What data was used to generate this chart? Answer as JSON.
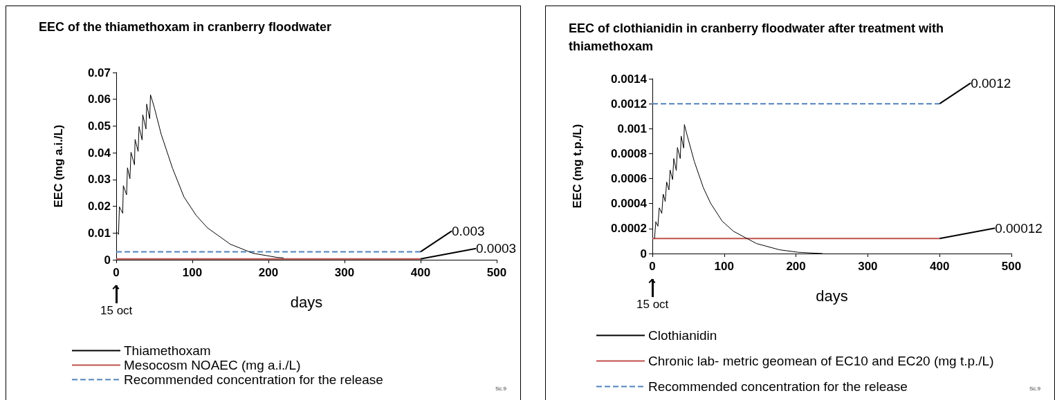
{
  "chart_data": [
    {
      "type": "line",
      "title": "EEC of the thiamethoxam in cranberry floodwater",
      "xlabel": "days",
      "ylabel": "EEC (mg a.i./L)",
      "xlim": [
        0,
        500
      ],
      "xticks": [
        0,
        100,
        200,
        300,
        400,
        500
      ],
      "ylim": [
        0,
        0.07
      ],
      "yticks": [
        0,
        0.01,
        0.02,
        0.03,
        0.04,
        0.05,
        0.06,
        0.07
      ],
      "grid": false,
      "legend": "bottom",
      "marker": "none",
      "series": [
        {
          "name": "Thiamethoxam",
          "color": "#000000",
          "x": [
            0,
            3,
            4.2,
            8.5,
            9.4,
            13.6,
            14.8,
            18,
            19.4,
            24,
            24.8,
            28.8,
            30,
            34,
            34.9,
            39.1,
            40,
            44,
            45,
            50,
            59,
            74,
            89,
            105,
            120,
            150,
            180,
            211,
            220
          ],
          "values": [
            0.0106,
            0.0095,
            0.0198,
            0.0174,
            0.0277,
            0.0243,
            0.0344,
            0.0303,
            0.0402,
            0.0355,
            0.045,
            0.0405,
            0.0498,
            0.0448,
            0.0542,
            0.0489,
            0.0582,
            0.0527,
            0.0617,
            0.057,
            0.047,
            0.0342,
            0.0235,
            0.0166,
            0.0119,
            0.0058,
            0.0024,
            0.0009,
            0.0007
          ]
        },
        {
          "name": "Mesocosm NOAEC (mg a.i./L)",
          "color": "#c0504d",
          "x": [
            0,
            400
          ],
          "values": [
            0.0003,
            0.0003
          ],
          "value_labels": [
            null,
            "0.0003"
          ]
        },
        {
          "name": "Recommended concentration for the release",
          "color": "#4f81bd",
          "line_style": "dashed",
          "x": [
            0,
            400
          ],
          "values": [
            0.003,
            0.003
          ],
          "value_labels": [
            null,
            "0.003"
          ]
        }
      ],
      "annotations": [
        "15 oct",
        "Sc.9"
      ]
    },
    {
      "type": "line",
      "title": "EEC of clothianidin in cranberry floodwater after treatment with thiamethoxam",
      "xlabel": "days",
      "ylabel": "EEC (mg t.p./L)",
      "xlim": [
        0,
        500
      ],
      "xticks": [
        0,
        100,
        200,
        300,
        400,
        500
      ],
      "ylim": [
        0,
        0.0014
      ],
      "yticks": [
        0,
        0.0002,
        0.0004,
        0.0006,
        0.0008,
        0.001,
        0.0012,
        0.0014
      ],
      "grid": false,
      "legend": "bottom",
      "marker": "none",
      "series": [
        {
          "name": "Clothianidin",
          "color": "#000000",
          "x": [
            3,
            4.8,
            7.7,
            9.6,
            13.1,
            15.1,
            17.9,
            19.9,
            23.1,
            24.7,
            28.2,
            29.8,
            33.3,
            34.9,
            38.8,
            40.1,
            43.6,
            44.6,
            48.7,
            58.3,
            71,
            81,
            97,
            113,
            145,
            177,
            203,
            237
          ],
          "values": [
            0.00012,
            0.000255,
            0.000219,
            0.000366,
            0.000322,
            0.000476,
            0.000417,
            0.000573,
            0.000509,
            0.000669,
            0.000592,
            0.000761,
            0.000665,
            0.000849,
            0.000761,
            0.000941,
            0.000845,
            0.001033,
            0.000941,
            0.000739,
            0.000527,
            0.000404,
            0.000261,
            0.000178,
            8e-05,
            3e-05,
            1e-05,
            0
          ]
        },
        {
          "name": "Chronic lab- metric geomean of EC10 and EC20 (mg t.p./L)",
          "color": "#c0504d",
          "x": [
            0,
            400
          ],
          "values": [
            0.00012,
            0.00012
          ],
          "value_labels": [
            null,
            "0.00012"
          ]
        },
        {
          "name": "Recommended concentration for the release",
          "color": "#4f81bd",
          "line_style": "dashed",
          "x": [
            0,
            400
          ],
          "values": [
            0.0012,
            0.0012
          ],
          "value_labels": [
            null,
            "0.0012"
          ]
        }
      ],
      "annotations": [
        "15 oct",
        "Sc.9"
      ]
    }
  ]
}
